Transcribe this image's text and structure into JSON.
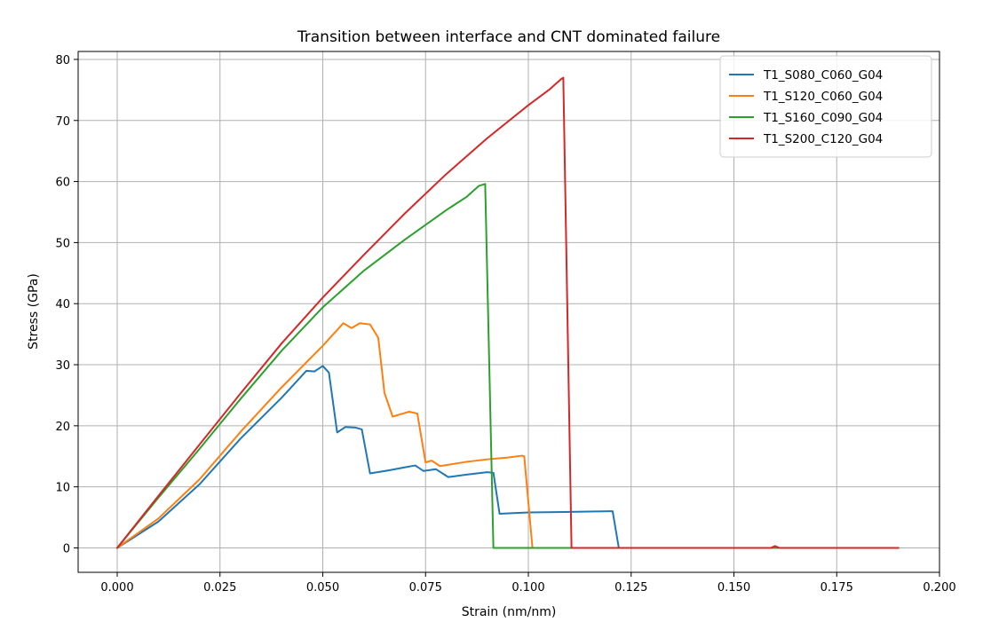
{
  "chart_data": {
    "type": "line",
    "title": "Transition between interface and CNT dominated failure",
    "xlabel": "Strain (nm/nm)",
    "ylabel": "Stress (GPa)",
    "xlim": [
      -0.0095,
      0.2
    ],
    "ylim": [
      -4,
      81.3
    ],
    "xticks": [
      0.0,
      0.025,
      0.05,
      0.075,
      0.1,
      0.125,
      0.15,
      0.175,
      0.2
    ],
    "xtick_labels": [
      "0.000",
      "0.025",
      "0.050",
      "0.075",
      "0.100",
      "0.125",
      "0.150",
      "0.175",
      "0.200"
    ],
    "yticks": [
      0,
      10,
      20,
      30,
      40,
      50,
      60,
      70,
      80
    ],
    "ytick_labels": [
      "0",
      "10",
      "20",
      "30",
      "40",
      "50",
      "60",
      "70",
      "80"
    ],
    "grid": true,
    "legend_position": "top-right",
    "series": [
      {
        "name": "T1_S080_C060_G04",
        "color": "#1f77b4",
        "points": [
          [
            0.0,
            0.0
          ],
          [
            0.01,
            4.3
          ],
          [
            0.02,
            10.4
          ],
          [
            0.03,
            17.9
          ],
          [
            0.04,
            24.6
          ],
          [
            0.046,
            29.0
          ],
          [
            0.048,
            28.9
          ],
          [
            0.05,
            29.8
          ],
          [
            0.0515,
            28.7
          ],
          [
            0.0535,
            18.9
          ],
          [
            0.0555,
            19.8
          ],
          [
            0.058,
            19.7
          ],
          [
            0.0595,
            19.4
          ],
          [
            0.0615,
            12.2
          ],
          [
            0.066,
            12.7
          ],
          [
            0.07,
            13.2
          ],
          [
            0.0725,
            13.5
          ],
          [
            0.0745,
            12.6
          ],
          [
            0.0775,
            12.9
          ],
          [
            0.0805,
            11.6
          ],
          [
            0.085,
            12.0
          ],
          [
            0.09,
            12.4
          ],
          [
            0.0915,
            12.3
          ],
          [
            0.093,
            5.6
          ],
          [
            0.1,
            5.8
          ],
          [
            0.11,
            5.9
          ],
          [
            0.12,
            6.0
          ],
          [
            0.1205,
            6.0
          ],
          [
            0.122,
            0.0
          ],
          [
            0.13,
            0.0
          ],
          [
            0.15,
            0.0
          ],
          [
            0.19,
            0.0
          ]
        ]
      },
      {
        "name": "T1_S120_C060_G04",
        "color": "#ff7f0e",
        "points": [
          [
            0.0,
            0.0
          ],
          [
            0.01,
            4.8
          ],
          [
            0.02,
            11.2
          ],
          [
            0.03,
            19.0
          ],
          [
            0.04,
            26.3
          ],
          [
            0.05,
            33.1
          ],
          [
            0.055,
            36.8
          ],
          [
            0.057,
            36.0
          ],
          [
            0.059,
            36.8
          ],
          [
            0.0615,
            36.6
          ],
          [
            0.0635,
            34.4
          ],
          [
            0.065,
            25.4
          ],
          [
            0.067,
            21.5
          ],
          [
            0.0695,
            22.0
          ],
          [
            0.071,
            22.3
          ],
          [
            0.073,
            22.0
          ],
          [
            0.075,
            14.0
          ],
          [
            0.0765,
            14.3
          ],
          [
            0.0785,
            13.4
          ],
          [
            0.085,
            14.1
          ],
          [
            0.09,
            14.5
          ],
          [
            0.095,
            14.8
          ],
          [
            0.0985,
            15.1
          ],
          [
            0.099,
            15.0
          ],
          [
            0.101,
            0.0
          ],
          [
            0.11,
            0.0
          ],
          [
            0.15,
            0.0
          ],
          [
            0.19,
            0.0
          ]
        ]
      },
      {
        "name": "T1_S160_C090_G04",
        "color": "#2ca02c",
        "points": [
          [
            0.0,
            0.0
          ],
          [
            0.01,
            8.2
          ],
          [
            0.02,
            16.2
          ],
          [
            0.03,
            24.4
          ],
          [
            0.04,
            32.3
          ],
          [
            0.05,
            39.4
          ],
          [
            0.06,
            45.4
          ],
          [
            0.07,
            50.5
          ],
          [
            0.08,
            55.3
          ],
          [
            0.085,
            57.5
          ],
          [
            0.088,
            59.3
          ],
          [
            0.0895,
            59.6
          ],
          [
            0.0915,
            0.0
          ],
          [
            0.1,
            0.0
          ],
          [
            0.11,
            0.0
          ],
          [
            0.15,
            0.0
          ],
          [
            0.19,
            0.0
          ]
        ]
      },
      {
        "name": "T1_S200_C120_G04",
        "color": "#d62728",
        "points": [
          [
            0.0,
            0.0
          ],
          [
            0.01,
            8.5
          ],
          [
            0.02,
            16.9
          ],
          [
            0.03,
            25.3
          ],
          [
            0.04,
            33.5
          ],
          [
            0.05,
            41.0
          ],
          [
            0.06,
            48.0
          ],
          [
            0.07,
            54.8
          ],
          [
            0.08,
            61.2
          ],
          [
            0.09,
            67.1
          ],
          [
            0.1,
            72.5
          ],
          [
            0.105,
            75.0
          ],
          [
            0.108,
            76.8
          ],
          [
            0.1085,
            77.0
          ],
          [
            0.1105,
            0.0
          ],
          [
            0.12,
            0.0
          ],
          [
            0.15,
            0.0
          ],
          [
            0.159,
            0.0
          ],
          [
            0.16,
            0.3
          ],
          [
            0.161,
            0.0
          ],
          [
            0.19,
            0.0
          ]
        ]
      }
    ]
  }
}
